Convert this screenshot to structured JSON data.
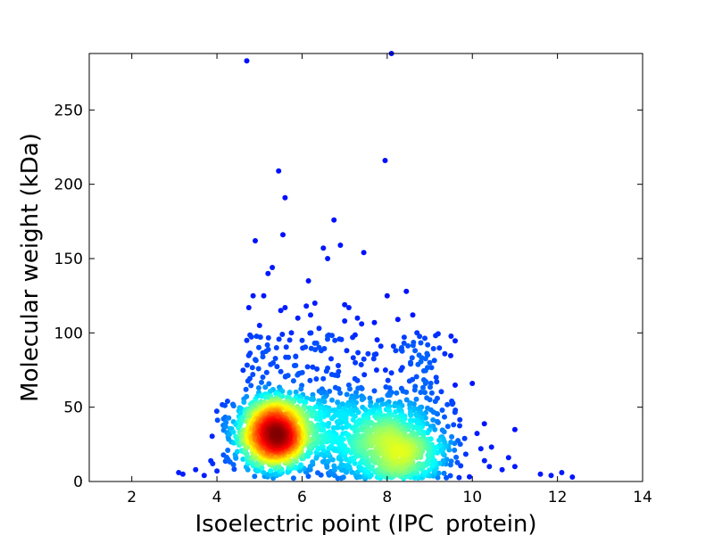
{
  "chart_data": {
    "type": "scatter",
    "title": "",
    "xlabel": "Isoelectric point (IPC_protein)",
    "ylabel": "Molecular weight (kDa)",
    "xlim": [
      1,
      14
    ],
    "ylim": [
      0,
      288
    ],
    "xticks": [
      2,
      4,
      6,
      8,
      10,
      12,
      14
    ],
    "yticks": [
      0,
      50,
      100,
      150,
      200,
      250
    ],
    "grid": false,
    "legend": "none",
    "colormap": "jet (point density)",
    "colors": {
      "low_density": "#0000b4",
      "mid_density": "#33e8c8",
      "high_density": "#800000"
    },
    "density_clusters": [
      {
        "center": [
          5.35,
          32
        ],
        "spread": [
          0.45,
          12
        ],
        "count": 1400
      },
      {
        "center": [
          8.3,
          22
        ],
        "spread": [
          0.6,
          14
        ],
        "count": 800
      },
      {
        "center": [
          7.0,
          30
        ],
        "spread": [
          0.7,
          14
        ],
        "count": 350
      }
    ],
    "outlier_points": [
      [
        4.7,
        283
      ],
      [
        8.1,
        288
      ],
      [
        7.95,
        216
      ],
      [
        5.45,
        209
      ],
      [
        5.6,
        191
      ],
      [
        6.75,
        176
      ],
      [
        5.55,
        166
      ],
      [
        4.9,
        162
      ],
      [
        6.9,
        159
      ],
      [
        6.5,
        157
      ],
      [
        7.45,
        154
      ],
      [
        6.6,
        150
      ],
      [
        5.3,
        144
      ],
      [
        5.2,
        140
      ],
      [
        6.15,
        135
      ],
      [
        8.45,
        128
      ],
      [
        8.0,
        125
      ],
      [
        5.1,
        125
      ],
      [
        4.85,
        125
      ],
      [
        6.3,
        120
      ],
      [
        7.0,
        119
      ],
      [
        6.1,
        118
      ],
      [
        5.6,
        117
      ],
      [
        7.1,
        117
      ],
      [
        4.75,
        117
      ],
      [
        5.5,
        115
      ],
      [
        8.6,
        112
      ],
      [
        7.3,
        110
      ],
      [
        6.2,
        112
      ],
      [
        5.9,
        110
      ],
      [
        8.25,
        109
      ],
      [
        7.0,
        108
      ],
      [
        7.7,
        107
      ],
      [
        7.4,
        106
      ],
      [
        5.0,
        105
      ],
      [
        6.4,
        103
      ],
      [
        5.75,
        100
      ],
      [
        8.7,
        100
      ],
      [
        6.6,
        98
      ],
      [
        8.4,
        97
      ],
      [
        4.7,
        95
      ],
      [
        6.0,
        95
      ],
      [
        8.95,
        92
      ],
      [
        5.4,
        90
      ],
      [
        7.85,
        91
      ],
      [
        7.05,
        88
      ],
      [
        6.45,
        88
      ],
      [
        8.2,
        88
      ],
      [
        7.55,
        86
      ],
      [
        8.75,
        85
      ],
      [
        5.85,
        84
      ],
      [
        4.9,
        82
      ],
      [
        9.0,
        80
      ],
      [
        7.25,
        80
      ],
      [
        8.55,
        79
      ],
      [
        6.85,
        78
      ],
      [
        6.25,
        77
      ],
      [
        7.75,
        75
      ],
      [
        5.5,
        74
      ],
      [
        8.1,
        73
      ],
      [
        9.15,
        70
      ],
      [
        6.7,
        72
      ],
      [
        7.3,
        68
      ],
      [
        8.9,
        66
      ],
      [
        10.0,
        66
      ],
      [
        9.6,
        48
      ],
      [
        10.2,
        22
      ],
      [
        10.4,
        10
      ],
      [
        10.7,
        8
      ],
      [
        11.0,
        35
      ],
      [
        11.0,
        10
      ],
      [
        10.85,
        16
      ],
      [
        11.6,
        5
      ],
      [
        11.85,
        4
      ],
      [
        12.1,
        6
      ],
      [
        12.35,
        3
      ],
      [
        3.1,
        6
      ],
      [
        3.2,
        5
      ],
      [
        3.5,
        8
      ],
      [
        3.7,
        4
      ],
      [
        3.9,
        12
      ],
      [
        4.0,
        7
      ]
    ]
  }
}
